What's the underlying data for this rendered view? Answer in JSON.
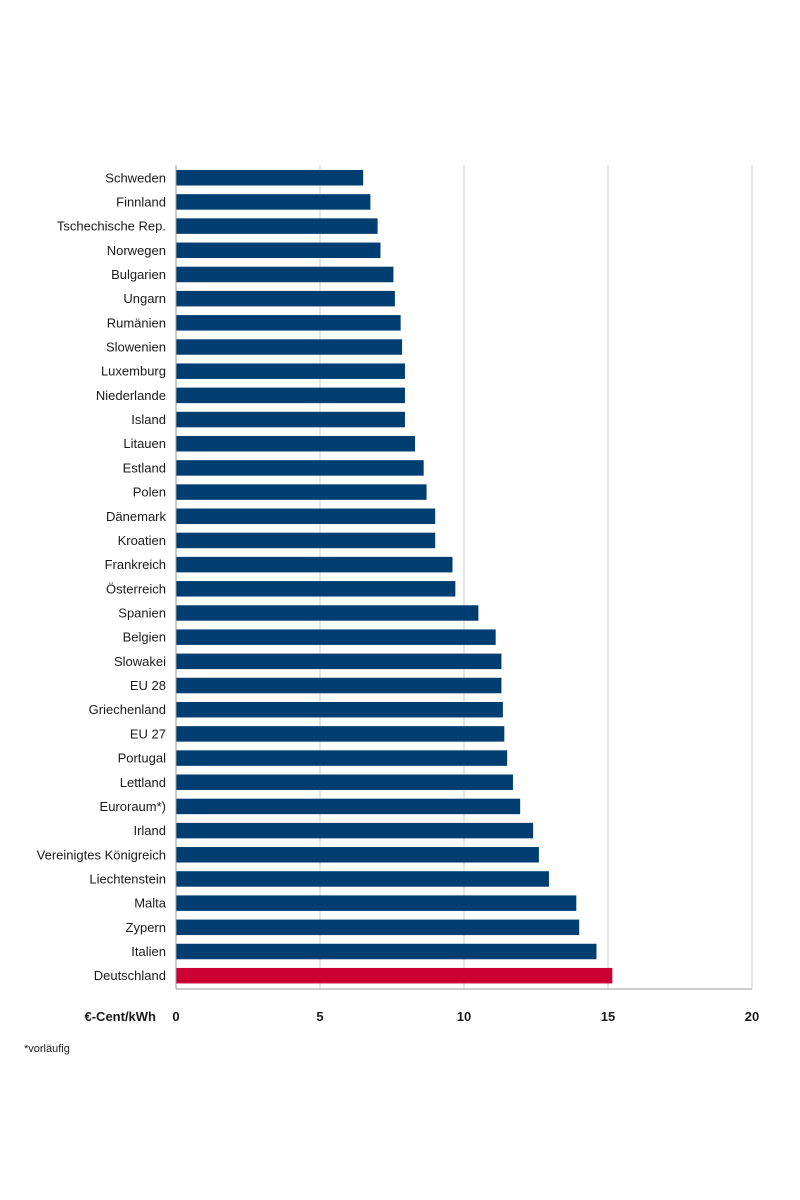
{
  "chart_data": {
    "type": "bar",
    "orientation": "horizontal",
    "categories": [
      "Schweden",
      "Finnland",
      "Tschechische Rep.",
      "Norwegen",
      "Bulgarien",
      "Ungarn",
      "Rumänien",
      "Slowenien",
      "Luxemburg",
      "Niederlande",
      "Island",
      "Litauen",
      "Estland",
      "Polen",
      "Dänemark",
      "Kroatien",
      "Frankreich",
      "Österreich",
      "Spanien",
      "Belgien",
      "Slowakei",
      "EU 28",
      "Griechenland",
      "EU 27",
      "Portugal",
      "Lettland",
      "Euroraum*)",
      "Irland",
      "Vereinigtes Königreich",
      "Liechtenstein",
      "Malta",
      "Zypern",
      "Italien",
      "Deutschland"
    ],
    "values": [
      6.5,
      6.75,
      7.0,
      7.1,
      7.55,
      7.6,
      7.8,
      7.85,
      7.95,
      7.95,
      7.95,
      8.3,
      8.6,
      8.7,
      9.0,
      9.0,
      9.6,
      9.7,
      10.5,
      11.1,
      11.3,
      11.3,
      11.35,
      11.4,
      11.5,
      11.7,
      11.95,
      12.4,
      12.6,
      12.95,
      13.9,
      14.0,
      14.6,
      15.15
    ],
    "highlight": "Deutschland",
    "colors": {
      "default": "#003e72",
      "highlight": "#cc0033",
      "grid": "#cccccc",
      "axis": "#999999"
    },
    "xlim": [
      0,
      20
    ],
    "xticks": [
      "0",
      "5",
      "10",
      "15",
      "20"
    ],
    "xlabel": "€-Cent/kWh",
    "title": "",
    "grid": true,
    "footnote": "*vorläufig"
  }
}
